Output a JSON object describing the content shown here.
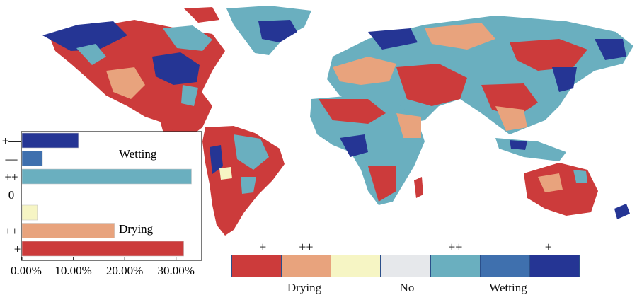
{
  "colors": {
    "strong_drying": "#cc3b3b",
    "moderate_drying": "#e8a37d",
    "weak_drying": "#f6f5c4",
    "no_change": "#e6e8eb",
    "moderate_wetting": "#6aafbf",
    "weak_wetting": "#3f70ae",
    "strong_wetting": "#253594"
  },
  "legend": {
    "items": [
      {
        "symbol": "—+",
        "color_key": "strong_drying"
      },
      {
        "symbol": "++",
        "color_key": "moderate_drying"
      },
      {
        "symbol": "—",
        "color_key": "weak_drying"
      },
      {
        "symbol": "",
        "color_key": "no_change"
      },
      {
        "symbol": "++",
        "color_key": "moderate_wetting"
      },
      {
        "symbol": "—",
        "color_key": "weak_wetting"
      },
      {
        "symbol": "+—",
        "color_key": "strong_wetting"
      }
    ],
    "labels": {
      "drying": "Drying",
      "no": "No",
      "wetting": "Wetting"
    }
  },
  "chart_data": {
    "type": "bar",
    "orientation": "horizontal",
    "categories": [
      "+—",
      "—",
      "++",
      "0",
      "—",
      "++",
      "—+"
    ],
    "values": [
      11,
      4,
      33,
      0,
      3,
      18,
      31.5
    ],
    "color_keys": [
      "strong_wetting",
      "weak_wetting",
      "moderate_wetting",
      "no_change",
      "weak_drying",
      "moderate_drying",
      "strong_drying"
    ],
    "xlim": [
      0,
      35
    ],
    "xticks": [
      "0.00%",
      "10.00%",
      "20.00%",
      "30.00%"
    ],
    "annotations": {
      "wetting": "Wetting",
      "drying": "Drying"
    }
  }
}
